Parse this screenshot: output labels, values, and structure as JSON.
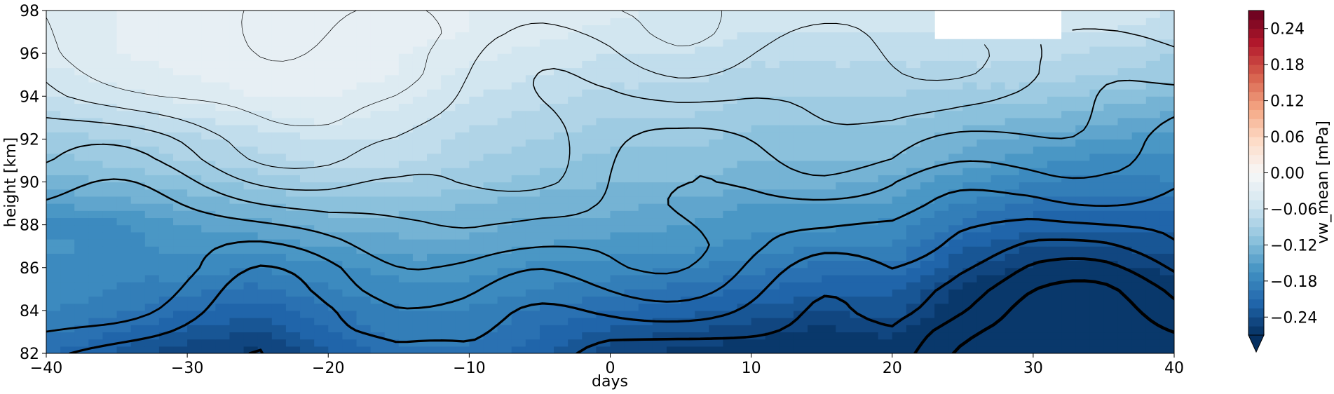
{
  "chart_data": {
    "type": "heatmap",
    "subtype": "filled-contour",
    "title": "",
    "xlabel": "days",
    "ylabel": "height [km]",
    "xlim": [
      -40,
      40
    ],
    "ylim": [
      82,
      98
    ],
    "xticks": [
      -40,
      -30,
      -20,
      -10,
      0,
      10,
      20,
      30,
      40
    ],
    "xtick_labels": [
      "−40",
      "−30",
      "−20",
      "−10",
      "0",
      "10",
      "20",
      "30",
      "40"
    ],
    "yticks": [
      82,
      84,
      86,
      88,
      90,
      92,
      94,
      96,
      98
    ],
    "ytick_labels": [
      "82",
      "84",
      "86",
      "88",
      "90",
      "92",
      "94",
      "96",
      "98"
    ],
    "x": [
      -40,
      -35,
      -30,
      -25,
      -20,
      -15,
      -10,
      -5,
      0,
      5,
      10,
      15,
      20,
      25,
      30,
      35,
      40
    ],
    "y": [
      82,
      83,
      84,
      85,
      86,
      87,
      88,
      89,
      90,
      91,
      92,
      93,
      94,
      95,
      96,
      97,
      98
    ],
    "z": [
      [
        -0.21,
        -0.23,
        -0.25,
        -0.26,
        -0.23,
        -0.2,
        -0.2,
        -0.22,
        -0.25,
        -0.26,
        -0.27,
        -0.28,
        -0.26,
        -0.3,
        -0.32,
        -0.31,
        -0.3
      ],
      [
        -0.19,
        -0.21,
        -0.23,
        -0.24,
        -0.21,
        -0.19,
        -0.19,
        -0.21,
        -0.23,
        -0.24,
        -0.25,
        -0.26,
        -0.25,
        -0.29,
        -0.31,
        -0.3,
        -0.29
      ],
      [
        -0.18,
        -0.19,
        -0.21,
        -0.22,
        -0.2,
        -0.18,
        -0.18,
        -0.2,
        -0.21,
        -0.22,
        -0.23,
        -0.24,
        -0.23,
        -0.27,
        -0.3,
        -0.29,
        -0.28
      ],
      [
        -0.17,
        -0.18,
        -0.19,
        -0.2,
        -0.18,
        -0.17,
        -0.17,
        -0.18,
        -0.19,
        -0.2,
        -0.21,
        -0.22,
        -0.22,
        -0.26,
        -0.28,
        -0.28,
        -0.27
      ],
      [
        -0.17,
        -0.18,
        -0.17,
        -0.18,
        -0.17,
        -0.16,
        -0.16,
        -0.17,
        -0.17,
        -0.18,
        -0.19,
        -0.2,
        -0.2,
        -0.24,
        -0.26,
        -0.26,
        -0.25
      ],
      [
        -0.16,
        -0.17,
        -0.16,
        -0.16,
        -0.15,
        -0.14,
        -0.14,
        -0.15,
        -0.16,
        -0.16,
        -0.17,
        -0.18,
        -0.18,
        -0.22,
        -0.24,
        -0.24,
        -0.23
      ],
      [
        -0.17,
        -0.17,
        -0.15,
        -0.14,
        -0.13,
        -0.13,
        -0.13,
        -0.14,
        -0.14,
        -0.15,
        -0.16,
        -0.16,
        -0.17,
        -0.2,
        -0.22,
        -0.22,
        -0.22
      ],
      [
        -0.15,
        -0.14,
        -0.13,
        -0.12,
        -0.11,
        -0.11,
        -0.12,
        -0.13,
        -0.13,
        -0.14,
        -0.15,
        -0.15,
        -0.15,
        -0.18,
        -0.2,
        -0.2,
        -0.2
      ],
      [
        -0.13,
        -0.12,
        -0.11,
        -0.1,
        -0.09,
        -0.09,
        -0.1,
        -0.11,
        -0.12,
        -0.12,
        -0.13,
        -0.13,
        -0.14,
        -0.16,
        -0.18,
        -0.19,
        -0.18
      ],
      [
        -0.11,
        -0.1,
        -0.09,
        -0.08,
        -0.07,
        -0.07,
        -0.09,
        -0.1,
        -0.11,
        -0.11,
        -0.12,
        -0.12,
        -0.12,
        -0.14,
        -0.16,
        -0.17,
        -0.17
      ],
      [
        -0.1,
        -0.09,
        -0.08,
        -0.07,
        -0.06,
        -0.06,
        -0.08,
        -0.09,
        -0.1,
        -0.1,
        -0.11,
        -0.11,
        -0.11,
        -0.13,
        -0.14,
        -0.15,
        -0.16
      ],
      [
        -0.08,
        -0.07,
        -0.06,
        -0.05,
        -0.04,
        -0.05,
        -0.07,
        -0.08,
        -0.09,
        -0.09,
        -0.1,
        -0.1,
        -0.1,
        -0.11,
        -0.12,
        -0.13,
        -0.14
      ],
      [
        -0.06,
        -0.05,
        -0.04,
        -0.03,
        -0.03,
        -0.04,
        -0.06,
        -0.07,
        -0.08,
        -0.08,
        -0.09,
        -0.09,
        -0.09,
        -0.1,
        -0.1,
        -0.11,
        -0.12
      ],
      [
        -0.05,
        -0.04,
        -0.03,
        -0.02,
        -0.02,
        -0.03,
        -0.05,
        -0.06,
        -0.07,
        -0.07,
        -0.08,
        -0.08,
        -0.08,
        -0.08,
        -0.08,
        -0.09,
        -0.1
      ],
      [
        -0.04,
        -0.03,
        -0.02,
        -0.02,
        -0.02,
        -0.03,
        -0.04,
        -0.05,
        -0.06,
        -0.06,
        -0.07,
        -0.07,
        -0.07,
        -0.07,
        -0.07,
        -0.08,
        -0.09
      ],
      [
        -0.04,
        -0.03,
        -0.02,
        -0.02,
        -0.02,
        -0.02,
        -0.03,
        -0.04,
        -0.05,
        -0.05,
        -0.06,
        -0.06,
        -0.06,
        null,
        null,
        -0.06,
        -0.07
      ],
      [
        -0.04,
        -0.03,
        -0.02,
        -0.02,
        -0.02,
        -0.02,
        -0.03,
        -0.04,
        -0.04,
        -0.05,
        -0.05,
        -0.05,
        -0.05,
        null,
        null,
        -0.05,
        -0.06
      ]
    ],
    "colorbar": {
      "label": "vw_mean [mPa]",
      "colormap": "RdBu_r",
      "vmin": -0.27,
      "vmax": 0.27,
      "extend": "min",
      "ticks": [
        -0.24,
        -0.18,
        -0.12,
        -0.06,
        0.0,
        0.06,
        0.12,
        0.18,
        0.24
      ],
      "tick_labels": [
        "−0.24",
        "−0.18",
        "−0.12",
        "−0.06",
        "0.00",
        "0.06",
        "0.12",
        "0.18",
        "0.24"
      ]
    },
    "overlay": "black line contours of a second field, thicker lines at larger magnitudes",
    "grid": false,
    "legend": "none"
  }
}
